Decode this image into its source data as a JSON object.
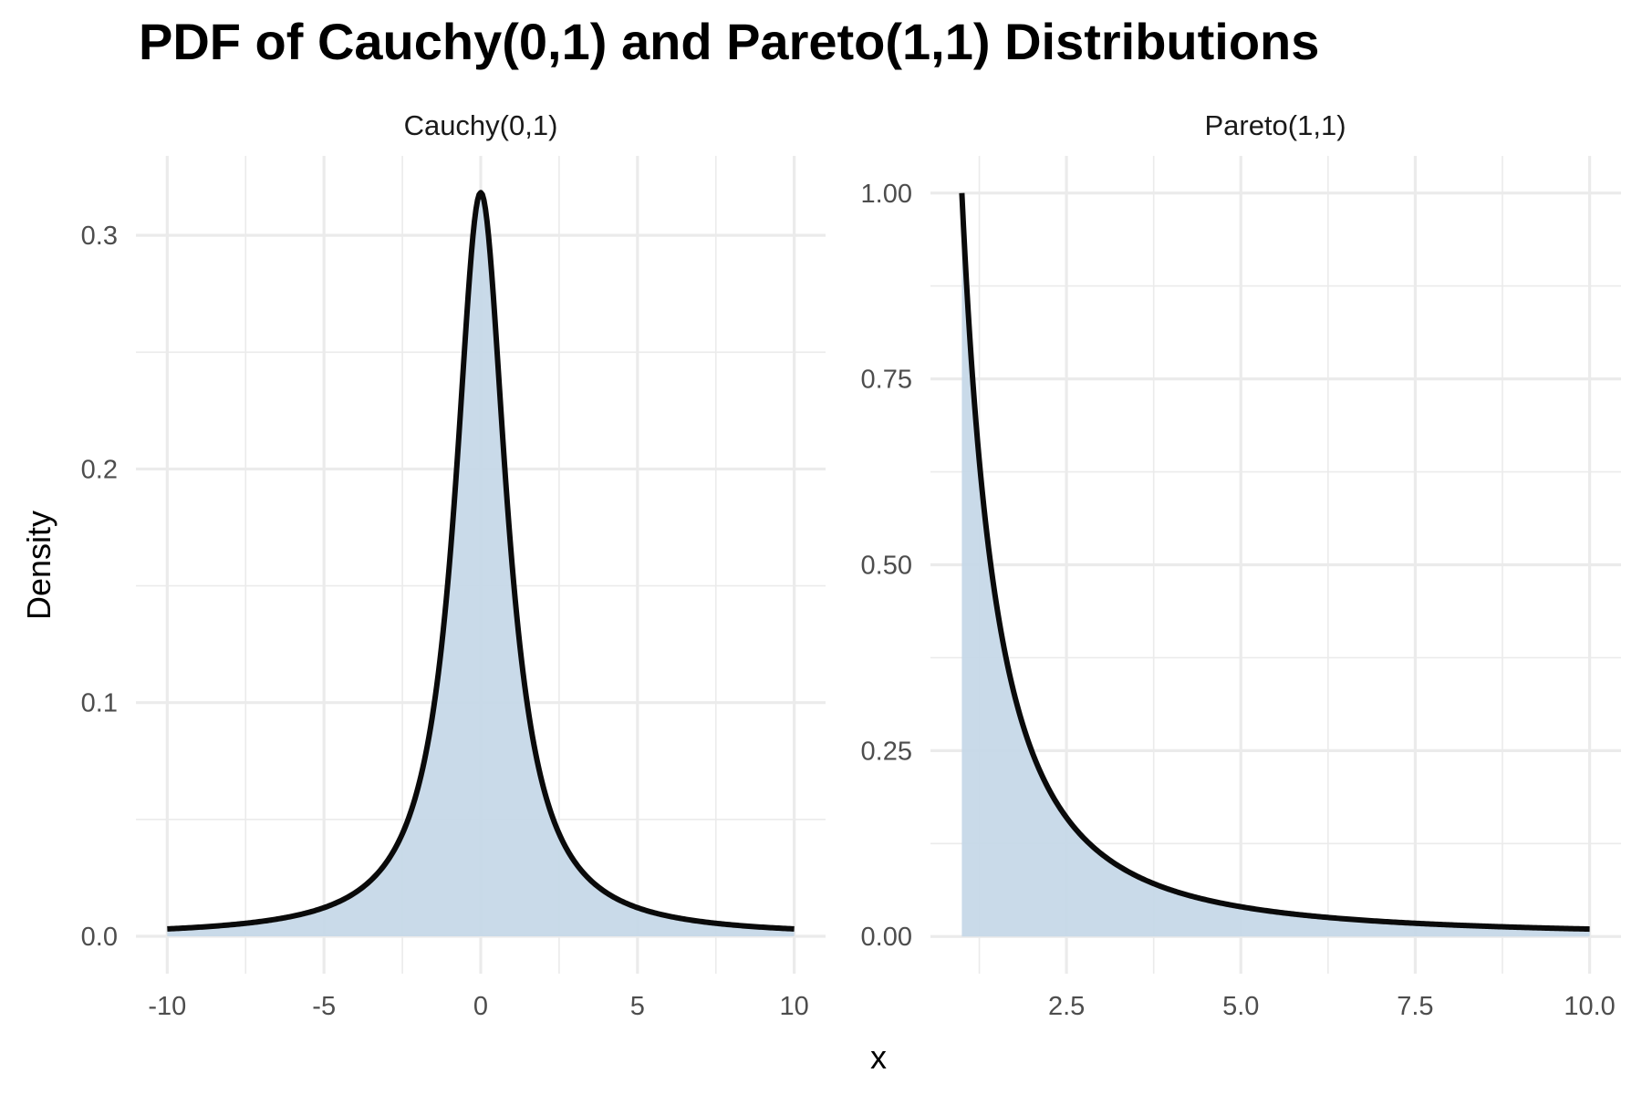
{
  "chart_data": {
    "type": "area",
    "title": "PDF of Cauchy(0,1) and Pareto(1,1) Distributions",
    "xlabel": "x",
    "ylabel": "Density",
    "grid": true,
    "legend": null,
    "fill_color": "#c6d8e8",
    "line_color": "#000000",
    "gridline_color": "#ebebeb",
    "panels": [
      {
        "strip_label": "Cauchy(0,1)",
        "formula": "1/(pi*(1+x^2))",
        "xlim": [
          -11,
          11
        ],
        "ylim": [
          -0.016,
          0.334
        ],
        "x_ticks": [
          -10,
          -5,
          0,
          5,
          10
        ],
        "x_tick_labels": [
          "-10",
          "-5",
          "0",
          "5",
          "10"
        ],
        "x_minor": [
          -7.5,
          -2.5,
          2.5,
          7.5
        ],
        "y_ticks": [
          0,
          0.1,
          0.2,
          0.3
        ],
        "y_tick_labels": [
          "0.0",
          "0.1",
          "0.2",
          "0.3"
        ],
        "y_minor": [
          0.05,
          0.15,
          0.25
        ],
        "x": [
          -10,
          -8,
          -6,
          -5,
          -4,
          -3,
          -2,
          -1.5,
          -1,
          -0.5,
          0,
          0.5,
          1,
          1.5,
          2,
          3,
          4,
          5,
          6,
          8,
          10
        ],
        "y": [
          0.0032,
          0.0049,
          0.0086,
          0.0122,
          0.0187,
          0.0318,
          0.0637,
          0.0979,
          0.1592,
          0.2546,
          0.3183,
          0.2546,
          0.1592,
          0.0979,
          0.0637,
          0.0318,
          0.0187,
          0.0122,
          0.0086,
          0.0049,
          0.0032
        ]
      },
      {
        "strip_label": "Pareto(1,1)",
        "formula": "1/x^2, x>=1",
        "xlim": [
          0.55,
          10.45
        ],
        "ylim": [
          -0.05,
          1.05
        ],
        "x_ticks": [
          2.5,
          5.0,
          7.5,
          10.0
        ],
        "x_tick_labels": [
          "2.5",
          "5.0",
          "7.5",
          "10.0"
        ],
        "x_minor": [
          1.25,
          3.75,
          6.25,
          8.75
        ],
        "y_ticks": [
          0,
          0.25,
          0.5,
          0.75,
          1.0
        ],
        "y_tick_labels": [
          "0.00",
          "0.25",
          "0.50",
          "0.75",
          "1.00"
        ],
        "y_minor": [
          0.125,
          0.375,
          0.625,
          0.875
        ],
        "x": [
          1,
          1.25,
          1.5,
          2,
          2.5,
          3,
          4,
          5,
          6,
          7.5,
          8,
          10
        ],
        "y": [
          1.0,
          0.64,
          0.444,
          0.25,
          0.16,
          0.111,
          0.0625,
          0.04,
          0.0278,
          0.0178,
          0.0156,
          0.01
        ]
      }
    ]
  }
}
